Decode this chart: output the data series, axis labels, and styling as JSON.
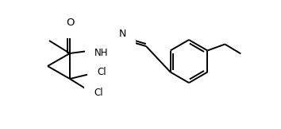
{
  "bg_color": "#ffffff",
  "line_color": "#000000",
  "text_color": "#000000",
  "line_width": 1.4,
  "font_size": 8.5,
  "fig_width": 3.54,
  "fig_height": 1.62,
  "dpi": 100,
  "xlim": [
    0,
    354
  ],
  "ylim": [
    0,
    162
  ]
}
